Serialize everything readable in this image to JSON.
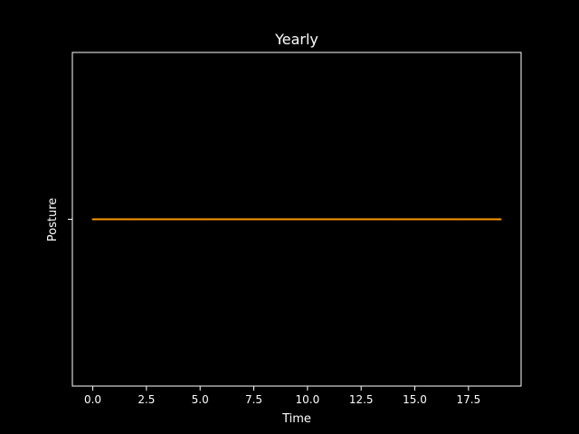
{
  "chart_data": {
    "type": "line",
    "title": "Yearly",
    "xlabel": "Time",
    "ylabel": "Posture",
    "xlim": [
      -0.95,
      19.95
    ],
    "x_ticks": [
      0.0,
      2.5,
      5.0,
      7.5,
      10.0,
      12.5,
      15.0,
      17.5
    ],
    "x_tick_labels": [
      "0.0",
      "2.5",
      "5.0",
      "7.5",
      "10.0",
      "12.5",
      "15.0",
      "17.5"
    ],
    "y_ticks": [
      ""
    ],
    "grid": false,
    "background": "#000000",
    "series": [
      {
        "color": "#ff9900",
        "x": [
          0,
          1,
          2,
          3,
          4,
          5,
          6,
          7,
          8,
          9,
          10,
          11,
          12,
          13,
          14,
          15,
          16,
          17,
          18,
          19
        ],
        "y": [
          "",
          "",
          "",
          "",
          "",
          "",
          "",
          "",
          "",
          "",
          "",
          "",
          "",
          "",
          "",
          "",
          "",
          "",
          "",
          ""
        ]
      }
    ]
  }
}
